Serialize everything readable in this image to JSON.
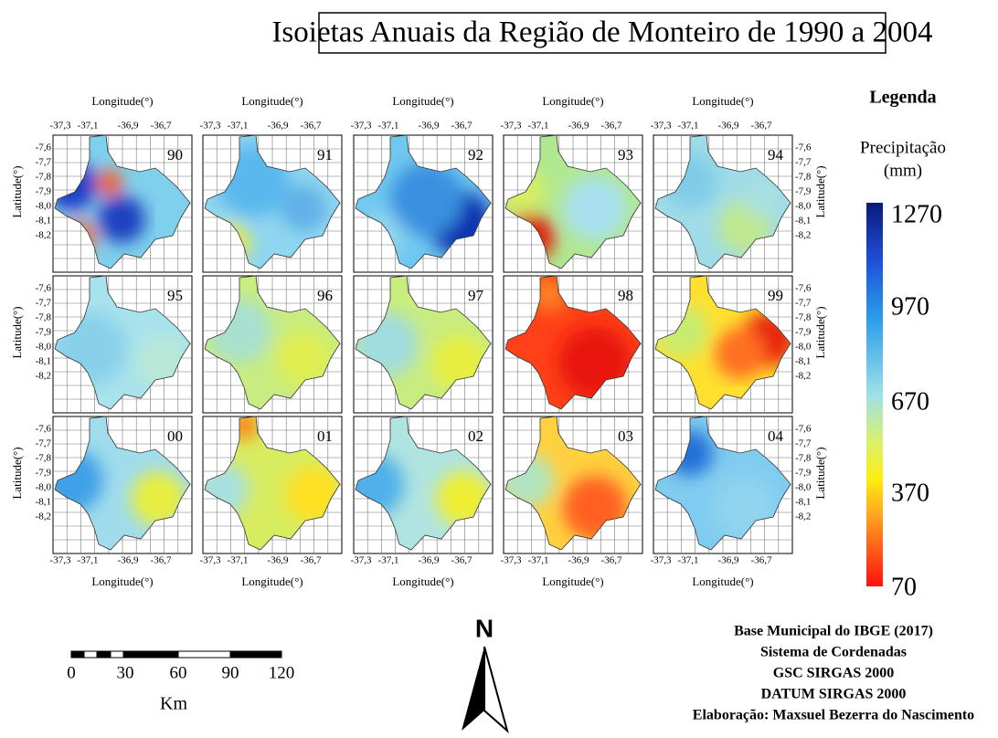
{
  "title": "Isoietas Anuais da Região de Monteiro de 1990 a 2004",
  "axes": {
    "longitude_label": "Longitude(°)",
    "latitude_label": "Latitude(°)",
    "longitude_ticks": [
      "-37,3",
      "-37,1",
      "-36,9",
      "-36,7"
    ],
    "latitude_ticks": [
      "-7,6",
      "-7,7",
      "-7,8",
      "-7,9",
      "-8,0",
      "-8,1",
      "-8,2"
    ]
  },
  "maps": [
    {
      "year": "90"
    },
    {
      "year": "91"
    },
    {
      "year": "92"
    },
    {
      "year": "93"
    },
    {
      "year": "94"
    },
    {
      "year": "95"
    },
    {
      "year": "96"
    },
    {
      "year": "97"
    },
    {
      "year": "98"
    },
    {
      "year": "99"
    },
    {
      "year": "00"
    },
    {
      "year": "01"
    },
    {
      "year": "02"
    },
    {
      "year": "03"
    },
    {
      "year": "04"
    }
  ],
  "legend": {
    "title": "Legenda",
    "subtitle": "Precipitação",
    "unit": "(mm)",
    "labels": [
      "1270",
      "970",
      "670",
      "370",
      "70"
    ]
  },
  "scale_bar": {
    "labels": [
      "0",
      "30",
      "60",
      "90",
      "120"
    ],
    "unit": "Km"
  },
  "north": "N",
  "credits": [
    "Base Municipal do IBGE (2017)",
    "Sistema de Cordenadas",
    "GSC SIRGAS 2000",
    "DATUM SIRGAS 2000",
    "Elaboração: Maxsuel Bezerra do Nascimento"
  ]
}
